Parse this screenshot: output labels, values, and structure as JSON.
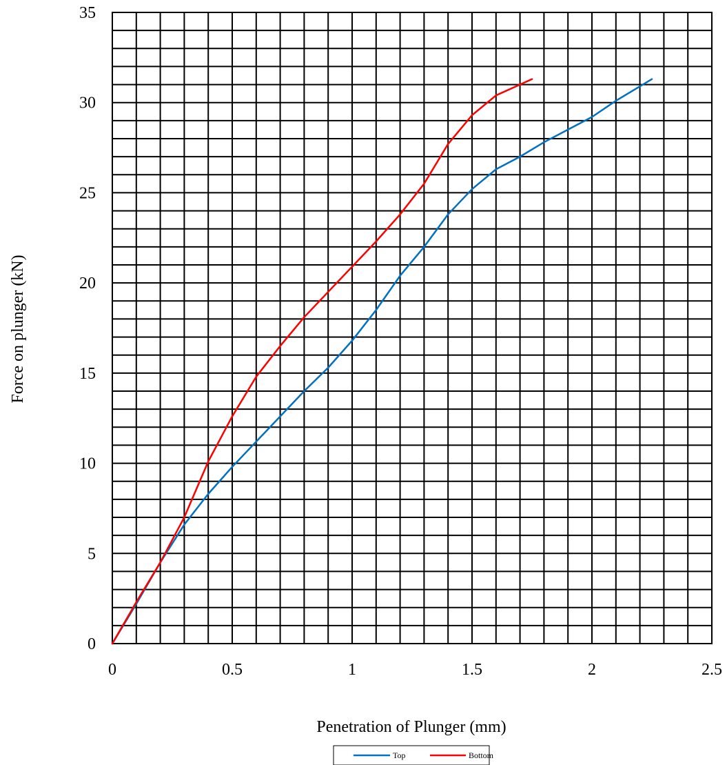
{
  "chart_data": {
    "type": "line",
    "xlabel": "Penetration of Plunger (mm)",
    "ylabel": "Force on plunger (kN)",
    "xlim": [
      0,
      2.5
    ],
    "ylim": [
      0,
      35
    ],
    "x_ticks": [
      "0",
      "0.5",
      "1",
      "1.5",
      "2",
      "2.5"
    ],
    "y_ticks": [
      "0",
      "5",
      "10",
      "15",
      "20",
      "25",
      "30",
      "35"
    ],
    "grid": true,
    "legend_position": "bottom",
    "series": [
      {
        "name": "Top",
        "color": "#0070c0",
        "points": [
          [
            0,
            0
          ],
          [
            0.1,
            2.2
          ],
          [
            0.2,
            4.5
          ],
          [
            0.3,
            6.6
          ],
          [
            0.4,
            8.3
          ],
          [
            0.5,
            9.8
          ],
          [
            0.6,
            11.2
          ],
          [
            0.7,
            12.6
          ],
          [
            0.8,
            14.0
          ],
          [
            0.9,
            15.3
          ],
          [
            1.0,
            16.8
          ],
          [
            1.1,
            18.5
          ],
          [
            1.2,
            20.4
          ],
          [
            1.3,
            22.0
          ],
          [
            1.4,
            23.8
          ],
          [
            1.5,
            25.2
          ],
          [
            1.6,
            26.3
          ],
          [
            1.7,
            27.0
          ],
          [
            1.8,
            27.8
          ],
          [
            1.9,
            28.5
          ],
          [
            2.0,
            29.2
          ],
          [
            2.1,
            30.1
          ],
          [
            2.2,
            30.9
          ],
          [
            2.25,
            31.3
          ]
        ]
      },
      {
        "name": "Bottom",
        "color": "#ff0000",
        "points": [
          [
            0,
            0
          ],
          [
            0.1,
            2.3
          ],
          [
            0.2,
            4.5
          ],
          [
            0.3,
            7.0
          ],
          [
            0.4,
            10.1
          ],
          [
            0.5,
            12.6
          ],
          [
            0.6,
            14.8
          ],
          [
            0.7,
            16.5
          ],
          [
            0.8,
            18.1
          ],
          [
            0.9,
            19.5
          ],
          [
            1.0,
            20.9
          ],
          [
            1.1,
            22.3
          ],
          [
            1.2,
            23.8
          ],
          [
            1.3,
            25.5
          ],
          [
            1.4,
            27.7
          ],
          [
            1.5,
            29.3
          ],
          [
            1.6,
            30.4
          ],
          [
            1.7,
            31.0
          ],
          [
            1.75,
            31.3
          ]
        ]
      }
    ]
  }
}
